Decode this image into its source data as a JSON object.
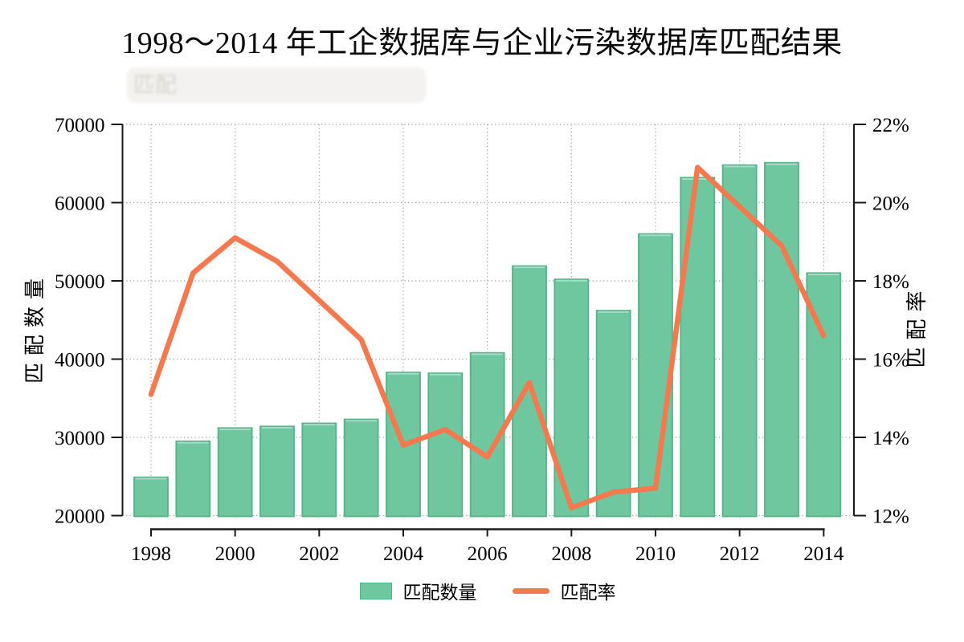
{
  "title": "1998～2014 年工企数据库与企业污染数据库匹配结果",
  "faded_subtitle": "匹配",
  "axes": {
    "left_label": "匹配数量",
    "right_label": "匹配率"
  },
  "legend": {
    "items": [
      {
        "label": "匹配数量",
        "marker": "bar"
      },
      {
        "label": "匹配率",
        "marker": "line"
      }
    ]
  },
  "colors": {
    "bar_fill": "#6FC7A0",
    "bar_stroke": "#54B389",
    "bar_top_highlight": "#A9DCC6",
    "line": "#F4794F",
    "grid": "#A0A0A0",
    "axis": "#1A1A1A",
    "text": "#000000",
    "ghost": "#D8D5CD"
  },
  "chart_data": {
    "type": "bar+line",
    "title": "1998～2014 年工企数据库与企业污染数据库匹配结果",
    "categories": [
      1998,
      1999,
      2000,
      2001,
      2002,
      2003,
      2004,
      2005,
      2006,
      2007,
      2008,
      2009,
      2010,
      2011,
      2012,
      2013,
      2014
    ],
    "series": [
      {
        "name": "匹配数量",
        "type": "bar",
        "y_axis": "left",
        "values": [
          24900,
          29500,
          31200,
          31400,
          31800,
          32300,
          38300,
          38200,
          40800,
          51900,
          50200,
          46200,
          56000,
          63200,
          64800,
          65100,
          51000
        ]
      },
      {
        "name": "匹配率",
        "type": "line",
        "y_axis": "right",
        "unit": "%",
        "values": [
          15.1,
          18.2,
          19.1,
          18.5,
          17.5,
          16.5,
          13.8,
          14.2,
          13.5,
          15.4,
          12.2,
          12.6,
          12.7,
          20.9,
          19.9,
          18.9,
          16.6
        ]
      }
    ],
    "y_left": {
      "label": "匹配数量",
      "min": 20000,
      "max": 70000,
      "tick_values": [
        20000,
        30000,
        40000,
        50000,
        60000,
        70000
      ],
      "tick_labels": [
        "20000",
        "30000",
        "40000",
        "50000",
        "60000",
        "70000"
      ]
    },
    "y_right": {
      "label": "匹配率",
      "min": 12,
      "max": 22,
      "tick_values": [
        12,
        14,
        16,
        18,
        20,
        22
      ],
      "tick_labels": [
        "12%",
        "14%",
        "16%",
        "18%",
        "20%",
        "22%"
      ]
    },
    "x": {
      "tick_values": [
        1998,
        2000,
        2002,
        2004,
        2006,
        2008,
        2010,
        2012,
        2014
      ],
      "tick_labels": [
        "1998",
        "2000",
        "2002",
        "2004",
        "2006",
        "2008",
        "2010",
        "2012",
        "2014"
      ]
    },
    "grid": "dotted horizontal and vertical",
    "legend_position": "bottom center"
  }
}
